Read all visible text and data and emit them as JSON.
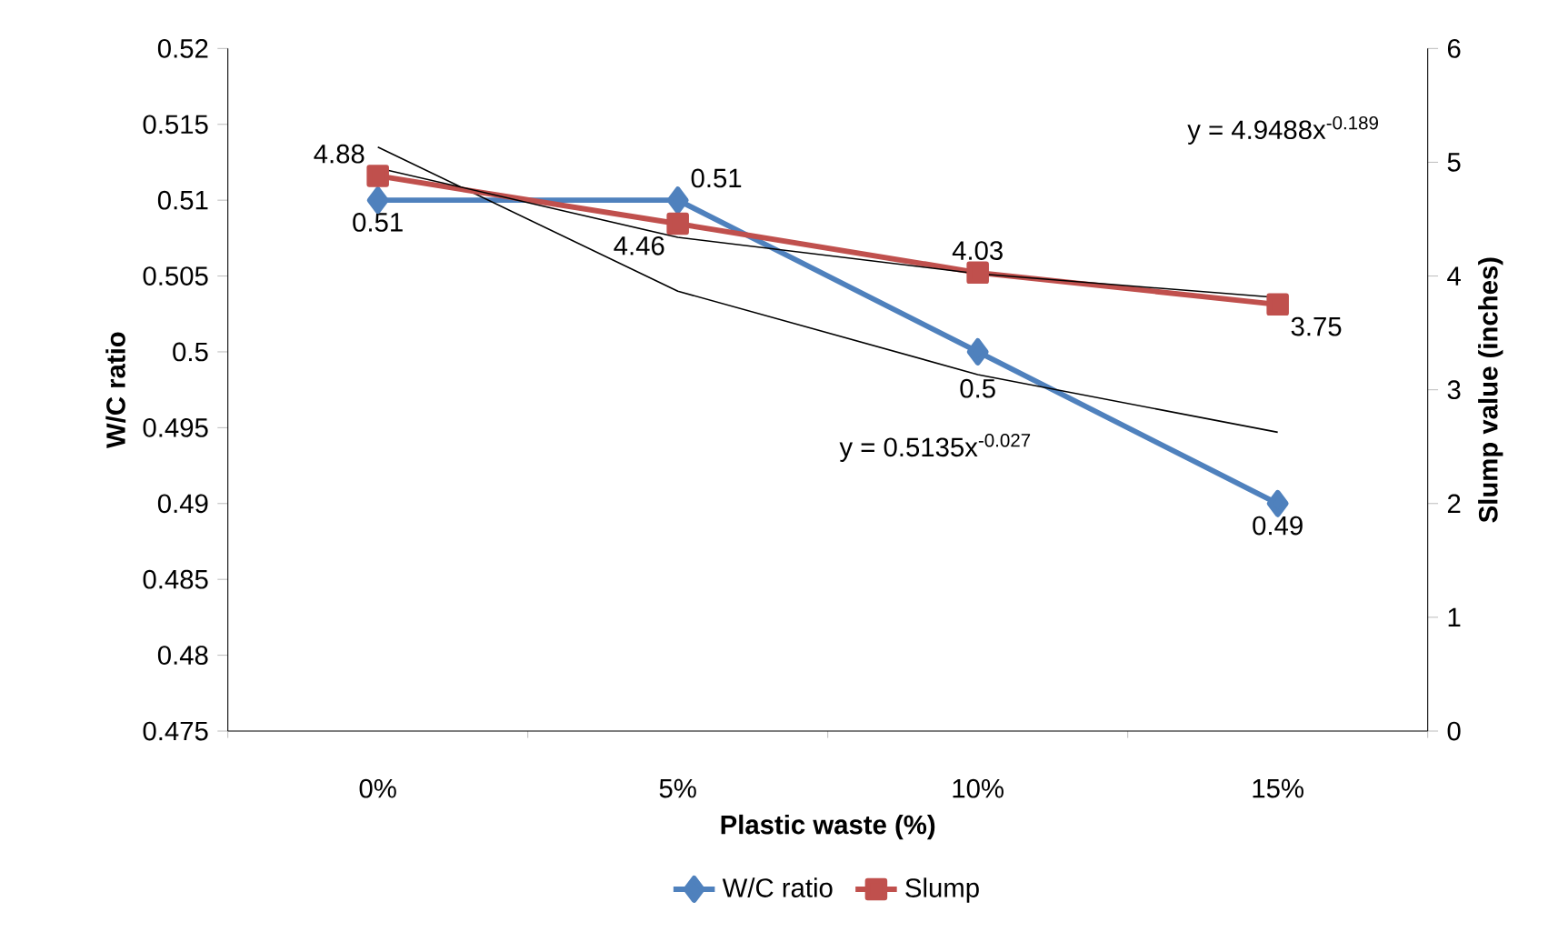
{
  "chart_data": {
    "type": "line",
    "xlabel": "Plastic waste (%)",
    "ylabel": "W/C ratio",
    "y2label": "Slump value (inches)",
    "categories": [
      "0%",
      "5%",
      "10%",
      "15%"
    ],
    "series": [
      {
        "name": "W/C ratio",
        "color": "#4f81bd",
        "values": [
          0.51,
          0.51,
          0.5,
          0.49
        ],
        "value_labels": [
          "0.51",
          "0.51",
          "0.5",
          "0.49"
        ],
        "marker": "diamond"
      },
      {
        "name": "Slump",
        "color": "#c0504d",
        "values": [
          4.88,
          4.46,
          4.03,
          3.75
        ],
        "value_labels": [
          "4.88",
          "4.46",
          "4.03",
          "3.75"
        ],
        "axis": "y2",
        "marker": "square"
      },
      {
        "type": "line",
        "color": "#000000",
        "values": [
          0.5135,
          0.504,
          0.4985,
          0.4947
        ],
        "marker": "none"
      },
      {
        "type": "line",
        "color": "#000000",
        "values": [
          4.95,
          4.34,
          4.02,
          3.81
        ],
        "axis": "y2",
        "marker": "none"
      }
    ],
    "ylim": [
      0.475,
      0.52
    ],
    "yticks": [
      0.475,
      0.48,
      0.485,
      0.49,
      0.495,
      0.5,
      0.505,
      0.51,
      0.515,
      0.52
    ],
    "y2lim": [
      0,
      6
    ],
    "y2ticks": [
      0,
      1,
      2,
      3,
      4,
      5,
      6
    ],
    "legend": "bottom",
    "grid": false,
    "annotations": [
      "y = 4.9488x$^{-0.189}$",
      "y = 0.5135x$^{-0.027}$"
    ]
  }
}
